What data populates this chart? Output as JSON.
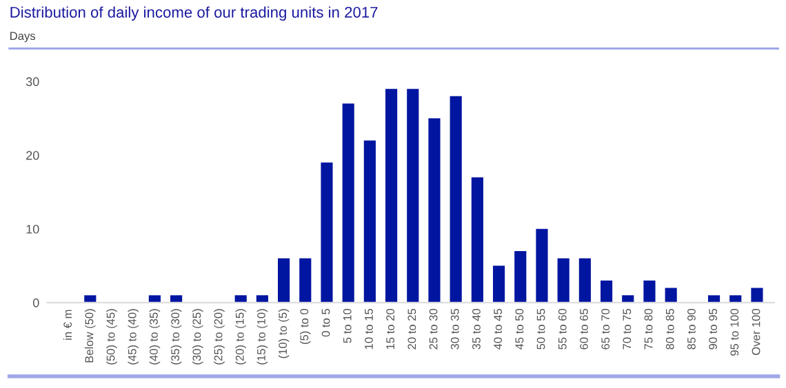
{
  "chart_data": {
    "type": "bar",
    "title": "Distribution of daily income of our trading units in 2017",
    "ylabel": "Days",
    "annotations": [
      "in € m"
    ],
    "categories": [
      "Below (50)",
      "(50) to (45)",
      "(45) to (40)",
      "(40) to (35)",
      "(35) to (30)",
      "(30) to (25)",
      "(25) to (20)",
      "(20) to (15)",
      "(15) to (10)",
      "(10) to (5)",
      "(5) to 0",
      "0 to 5",
      "5 to 10",
      "10 to 15",
      "15 to 20",
      "20 to 25",
      "25 to 30",
      "30 to 35",
      "35 to 40",
      "40 to 45",
      "45 to 50",
      "50 to 55",
      "55 to 60",
      "60 to 65",
      "65 to 70",
      "70 to 75",
      "75 to 80",
      "80 to 85",
      "85 to 90",
      "90 to 95",
      "95 to 100",
      "Over 100"
    ],
    "values": [
      1,
      0,
      0,
      1,
      1,
      0,
      0,
      1,
      1,
      6,
      6,
      19,
      27,
      22,
      29,
      29,
      25,
      28,
      17,
      5,
      7,
      10,
      6,
      6,
      3,
      1,
      3,
      2,
      0,
      1,
      1,
      2
    ],
    "color": "#0015a0",
    "ylim": [
      0,
      30
    ],
    "yticks": [
      0,
      10,
      20,
      30
    ],
    "grid": false,
    "legend": false
  }
}
